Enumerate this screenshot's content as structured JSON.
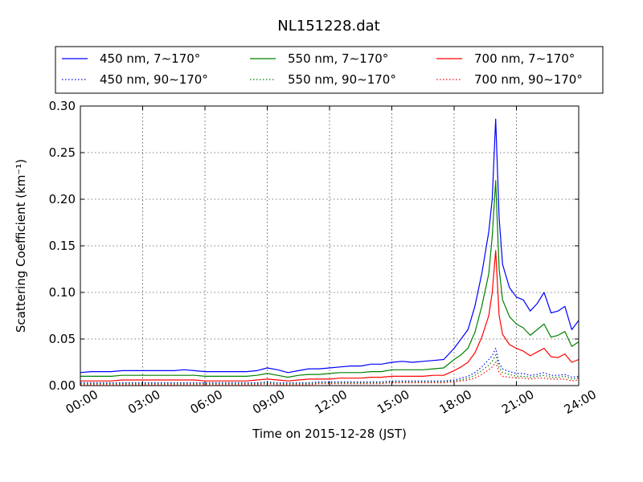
{
  "chart_data": {
    "type": "line",
    "title": "NL151228.dat",
    "xlabel": "Time on 2015-12-28 (JST)",
    "ylabel": "Scattering Coefficient (km⁻¹)",
    "xlim": [
      "00:00",
      "24:00"
    ],
    "ylim": [
      0.0,
      0.3
    ],
    "x_ticks": [
      "00:00",
      "03:00",
      "06:00",
      "09:00",
      "12:00",
      "15:00",
      "18:00",
      "21:00",
      "24:00"
    ],
    "y_ticks": [
      "0.00",
      "0.05",
      "0.10",
      "0.15",
      "0.20",
      "0.25",
      "0.30"
    ],
    "grid": true,
    "legend_position": "top",
    "x": [
      "00:00",
      "00:30",
      "01:00",
      "01:30",
      "02:00",
      "02:30",
      "03:00",
      "03:30",
      "04:00",
      "04:30",
      "05:00",
      "05:30",
      "06:00",
      "06:30",
      "07:00",
      "07:30",
      "08:00",
      "08:30",
      "09:00",
      "09:30",
      "10:00",
      "10:30",
      "11:00",
      "11:30",
      "12:00",
      "12:30",
      "13:00",
      "13:30",
      "14:00",
      "14:30",
      "15:00",
      "15:30",
      "16:00",
      "16:30",
      "17:00",
      "17:30",
      "18:00",
      "18:20",
      "18:40",
      "19:00",
      "19:20",
      "19:40",
      "19:50",
      "20:00",
      "20:10",
      "20:20",
      "20:40",
      "21:00",
      "21:20",
      "21:40",
      "22:00",
      "22:20",
      "22:40",
      "23:00",
      "23:20",
      "23:40",
      "24:00"
    ],
    "series": [
      {
        "name": "450 nm, 7∼170°",
        "color": "#0000ff",
        "style": "solid",
        "values": [
          0.014,
          0.015,
          0.015,
          0.015,
          0.016,
          0.016,
          0.016,
          0.016,
          0.016,
          0.016,
          0.017,
          0.016,
          0.015,
          0.015,
          0.015,
          0.015,
          0.015,
          0.016,
          0.019,
          0.017,
          0.014,
          0.016,
          0.018,
          0.018,
          0.019,
          0.02,
          0.021,
          0.021,
          0.023,
          0.023,
          0.025,
          0.026,
          0.025,
          0.026,
          0.027,
          0.028,
          0.04,
          0.05,
          0.06,
          0.085,
          0.12,
          0.165,
          0.2,
          0.286,
          0.18,
          0.13,
          0.105,
          0.095,
          0.092,
          0.08,
          0.088,
          0.1,
          0.078,
          0.08,
          0.085,
          0.06,
          0.07
        ]
      },
      {
        "name": "550 nm, 7∼170°",
        "color": "#008000",
        "style": "solid",
        "values": [
          0.01,
          0.01,
          0.01,
          0.01,
          0.011,
          0.011,
          0.011,
          0.011,
          0.011,
          0.011,
          0.011,
          0.011,
          0.01,
          0.01,
          0.01,
          0.01,
          0.01,
          0.011,
          0.013,
          0.011,
          0.009,
          0.011,
          0.012,
          0.012,
          0.013,
          0.014,
          0.014,
          0.014,
          0.015,
          0.015,
          0.017,
          0.017,
          0.017,
          0.017,
          0.018,
          0.019,
          0.028,
          0.033,
          0.04,
          0.057,
          0.085,
          0.12,
          0.16,
          0.22,
          0.125,
          0.092,
          0.074,
          0.066,
          0.062,
          0.054,
          0.06,
          0.066,
          0.052,
          0.054,
          0.058,
          0.042,
          0.047
        ]
      },
      {
        "name": "700 nm, 7∼170°",
        "color": "#ff0000",
        "style": "solid",
        "values": [
          0.005,
          0.005,
          0.005,
          0.005,
          0.006,
          0.006,
          0.006,
          0.006,
          0.006,
          0.006,
          0.006,
          0.006,
          0.005,
          0.005,
          0.005,
          0.005,
          0.005,
          0.006,
          0.007,
          0.006,
          0.005,
          0.006,
          0.007,
          0.007,
          0.007,
          0.008,
          0.008,
          0.008,
          0.009,
          0.009,
          0.01,
          0.01,
          0.01,
          0.01,
          0.011,
          0.011,
          0.016,
          0.02,
          0.025,
          0.035,
          0.052,
          0.075,
          0.1,
          0.145,
          0.075,
          0.055,
          0.044,
          0.04,
          0.037,
          0.032,
          0.036,
          0.04,
          0.031,
          0.03,
          0.034,
          0.025,
          0.028
        ]
      },
      {
        "name": "450 nm, 90∼170°",
        "color": "#0000ff",
        "style": "dotted",
        "values": [
          0.003,
          0.003,
          0.003,
          0.003,
          0.003,
          0.003,
          0.003,
          0.003,
          0.003,
          0.003,
          0.003,
          0.003,
          0.003,
          0.003,
          0.003,
          0.003,
          0.003,
          0.003,
          0.004,
          0.003,
          0.003,
          0.003,
          0.003,
          0.004,
          0.004,
          0.004,
          0.004,
          0.004,
          0.004,
          0.004,
          0.005,
          0.005,
          0.005,
          0.005,
          0.005,
          0.005,
          0.006,
          0.008,
          0.01,
          0.014,
          0.02,
          0.028,
          0.032,
          0.04,
          0.024,
          0.018,
          0.015,
          0.013,
          0.013,
          0.011,
          0.012,
          0.014,
          0.011,
          0.011,
          0.012,
          0.009,
          0.01
        ]
      },
      {
        "name": "550 nm, 90∼170°",
        "color": "#008000",
        "style": "dotted",
        "values": [
          0.002,
          0.002,
          0.002,
          0.002,
          0.002,
          0.002,
          0.002,
          0.002,
          0.002,
          0.002,
          0.002,
          0.002,
          0.002,
          0.002,
          0.002,
          0.002,
          0.002,
          0.002,
          0.003,
          0.002,
          0.002,
          0.002,
          0.002,
          0.003,
          0.003,
          0.003,
          0.003,
          0.003,
          0.003,
          0.003,
          0.004,
          0.004,
          0.004,
          0.004,
          0.004,
          0.004,
          0.005,
          0.006,
          0.008,
          0.011,
          0.016,
          0.022,
          0.026,
          0.033,
          0.019,
          0.014,
          0.012,
          0.01,
          0.01,
          0.009,
          0.01,
          0.011,
          0.009,
          0.009,
          0.01,
          0.007,
          0.008
        ]
      },
      {
        "name": "700 nm, 90∼170°",
        "color": "#ff0000",
        "style": "dotted",
        "values": [
          0.001,
          0.001,
          0.001,
          0.001,
          0.001,
          0.001,
          0.001,
          0.001,
          0.001,
          0.001,
          0.001,
          0.001,
          0.001,
          0.001,
          0.001,
          0.001,
          0.001,
          0.001,
          0.002,
          0.001,
          0.001,
          0.001,
          0.001,
          0.002,
          0.002,
          0.002,
          0.002,
          0.002,
          0.002,
          0.002,
          0.003,
          0.003,
          0.003,
          0.003,
          0.003,
          0.003,
          0.004,
          0.005,
          0.006,
          0.008,
          0.012,
          0.017,
          0.02,
          0.025,
          0.014,
          0.01,
          0.009,
          0.008,
          0.008,
          0.007,
          0.008,
          0.008,
          0.007,
          0.007,
          0.007,
          0.005,
          0.006
        ]
      }
    ]
  },
  "legend": {
    "rows": [
      [
        "450 nm, 7∼170°",
        "550 nm, 7∼170°",
        "700 nm, 7∼170°"
      ],
      [
        "450 nm, 90∼170°",
        "550 nm, 90∼170°",
        "700 nm, 90∼170°"
      ]
    ]
  }
}
